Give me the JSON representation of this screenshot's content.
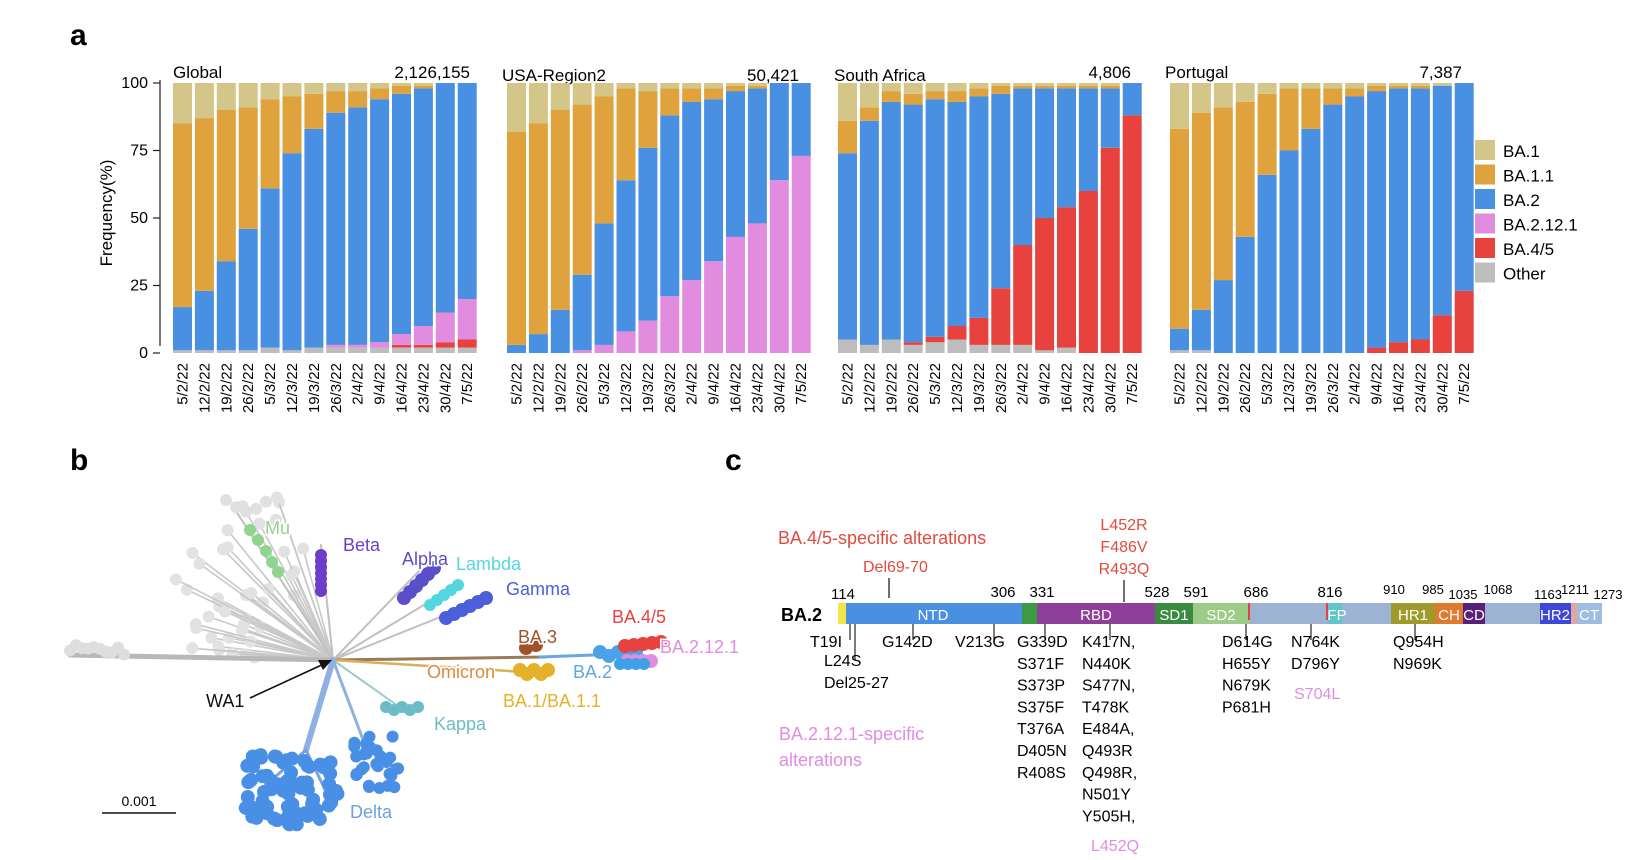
{
  "panel_labels": {
    "a": "a",
    "b": "b",
    "c": "c"
  },
  "colors": {
    "BA.1": "#d4c589",
    "BA.1.1": "#e0a23c",
    "BA.2": "#4a90e2",
    "BA.2.12.1": "#e28ce0",
    "BA.4/5": "#e8423f",
    "Other": "#bdbdbd"
  },
  "chart_data": [
    {
      "type": "bar",
      "stacked": true,
      "title": "Global",
      "count_label": "2,126,155",
      "ylabel": "Frequency(%)",
      "ylim": [
        0,
        100
      ],
      "yticks": [
        "0",
        "25",
        "50",
        "75",
        "100"
      ],
      "categories": [
        "5/2/22",
        "12/2/22",
        "19/2/22",
        "26/2/22",
        "5/3/22",
        "12/3/22",
        "19/3/22",
        "26/3/22",
        "2/4/22",
        "9/4/22",
        "16/4/22",
        "23/4/22",
        "30/4/22",
        "7/5/22"
      ],
      "series": [
        {
          "name": "Other",
          "values": [
            1,
            1,
            1,
            1,
            2,
            1,
            2,
            2,
            2,
            2,
            2,
            2,
            2,
            2
          ]
        },
        {
          "name": "BA.4/5",
          "values": [
            0,
            0,
            0,
            0,
            0,
            0,
            0,
            0,
            0,
            0,
            1,
            1,
            2,
            3
          ]
        },
        {
          "name": "BA.2.12.1",
          "values": [
            0,
            0,
            0,
            0,
            0,
            0,
            0,
            1,
            1,
            2,
            4,
            7,
            11,
            15
          ]
        },
        {
          "name": "BA.2",
          "values": [
            16,
            22,
            33,
            45,
            59,
            73,
            81,
            86,
            88,
            90,
            89,
            88,
            85,
            80
          ]
        },
        {
          "name": "BA.1.1",
          "values": [
            68,
            64,
            56,
            45,
            33,
            21,
            13,
            8,
            6,
            4,
            3,
            1,
            0,
            0
          ]
        },
        {
          "name": "BA.1",
          "values": [
            15,
            13,
            10,
            9,
            6,
            5,
            4,
            3,
            3,
            2,
            1,
            1,
            0,
            0
          ]
        }
      ],
      "legend": "right"
    },
    {
      "type": "bar",
      "stacked": true,
      "title": "USA-Region2",
      "count_label": "50,421",
      "ylim": [
        0,
        100
      ],
      "categories": [
        "5/2/22",
        "12/2/22",
        "19/2/22",
        "26/2/22",
        "5/3/22",
        "12/3/22",
        "19/3/22",
        "26/3/22",
        "2/4/22",
        "9/4/22",
        "16/4/22",
        "23/4/22",
        "30/4/22",
        "7/5/22"
      ],
      "series": [
        {
          "name": "Other",
          "values": [
            0,
            0,
            0,
            0,
            0,
            0,
            0,
            0,
            0,
            0,
            0,
            0,
            0,
            0
          ]
        },
        {
          "name": "BA.4/5",
          "values": [
            0,
            0,
            0,
            0,
            0,
            0,
            0,
            0,
            0,
            0,
            0,
            0,
            0,
            0
          ]
        },
        {
          "name": "BA.2.12.1",
          "values": [
            0,
            0,
            0,
            1,
            3,
            8,
            12,
            21,
            27,
            34,
            43,
            48,
            64,
            73
          ]
        },
        {
          "name": "BA.2",
          "values": [
            3,
            7,
            16,
            28,
            45,
            56,
            64,
            67,
            66,
            60,
            54,
            50,
            36,
            27
          ]
        },
        {
          "name": "BA.1.1",
          "values": [
            79,
            78,
            74,
            63,
            47,
            34,
            21,
            10,
            5,
            4,
            2,
            1,
            0,
            0
          ]
        },
        {
          "name": "BA.1",
          "values": [
            18,
            15,
            10,
            8,
            5,
            2,
            3,
            2,
            2,
            2,
            1,
            1,
            0,
            0
          ]
        }
      ]
    },
    {
      "type": "bar",
      "stacked": true,
      "title": "South Africa",
      "count_label": "4,806",
      "ylim": [
        0,
        100
      ],
      "categories": [
        "5/2/22",
        "12/2/22",
        "19/2/22",
        "26/2/22",
        "5/3/22",
        "12/3/22",
        "19/3/22",
        "26/3/22",
        "2/4/22",
        "9/4/22",
        "16/4/22",
        "23/4/22",
        "30/4/22",
        "7/5/22"
      ],
      "series": [
        {
          "name": "Other",
          "values": [
            5,
            3,
            5,
            3,
            4,
            5,
            3,
            3,
            3,
            1,
            2,
            0,
            0,
            0
          ]
        },
        {
          "name": "BA.4/5",
          "values": [
            0,
            0,
            0,
            1,
            2,
            5,
            10,
            21,
            37,
            49,
            52,
            60,
            76,
            88
          ]
        },
        {
          "name": "BA.2.12.1",
          "values": [
            0,
            0,
            0,
            0,
            0,
            0,
            0,
            0,
            0,
            0,
            0,
            0,
            0,
            0
          ]
        },
        {
          "name": "BA.2",
          "values": [
            69,
            83,
            88,
            88,
            88,
            83,
            82,
            72,
            58,
            48,
            44,
            38,
            22,
            12
          ]
        },
        {
          "name": "BA.1.1",
          "values": [
            12,
            5,
            4,
            4,
            3,
            4,
            3,
            3,
            1,
            1,
            1,
            1,
            1,
            0
          ]
        },
        {
          "name": "BA.1",
          "values": [
            14,
            9,
            3,
            4,
            3,
            3,
            2,
            1,
            1,
            1,
            1,
            1,
            1,
            0
          ]
        }
      ]
    },
    {
      "type": "bar",
      "stacked": true,
      "title": "Portugal",
      "count_label": "7,387",
      "ylim": [
        0,
        100
      ],
      "categories": [
        "5/2/22",
        "12/2/22",
        "19/2/22",
        "26/2/22",
        "5/3/22",
        "12/3/22",
        "19/3/22",
        "26/3/22",
        "2/4/22",
        "9/4/22",
        "16/4/22",
        "23/4/22",
        "30/4/22",
        "7/5/22"
      ],
      "series": [
        {
          "name": "Other",
          "values": [
            1,
            1,
            0,
            0,
            0,
            0,
            0,
            0,
            0,
            0,
            0,
            0,
            0,
            0
          ]
        },
        {
          "name": "BA.4/5",
          "values": [
            0,
            0,
            0,
            0,
            0,
            0,
            0,
            0,
            0,
            2,
            4,
            5,
            14,
            23
          ]
        },
        {
          "name": "BA.2.12.1",
          "values": [
            0,
            0,
            0,
            0,
            0,
            0,
            0,
            0,
            0,
            0,
            0,
            0,
            0,
            0
          ]
        },
        {
          "name": "BA.2",
          "values": [
            8,
            15,
            27,
            43,
            66,
            75,
            83,
            92,
            95,
            95,
            94,
            93,
            85,
            77
          ]
        },
        {
          "name": "BA.1.1",
          "values": [
            74,
            73,
            64,
            50,
            30,
            23,
            15,
            6,
            3,
            2,
            1,
            1,
            0,
            0
          ]
        },
        {
          "name": "BA.1",
          "values": [
            17,
            11,
            9,
            7,
            4,
            2,
            2,
            2,
            2,
            1,
            1,
            1,
            1,
            0
          ]
        }
      ]
    }
  ],
  "legend_items": [
    "BA.1",
    "BA.1.1",
    "BA.2",
    "BA.2.12.1",
    "BA.4/5",
    "Other"
  ],
  "tree": {
    "labels": [
      {
        "text": "Mu",
        "color": "#8fd48f"
      },
      {
        "text": "Beta",
        "color": "#6a3ec8"
      },
      {
        "text": "Alpha",
        "color": "#5a4ecb"
      },
      {
        "text": "Lambda",
        "color": "#53d6df"
      },
      {
        "text": "Gamma",
        "color": "#4a5fd9"
      },
      {
        "text": "BA.4/5",
        "color": "#e8423f"
      },
      {
        "text": "BA.2.12.1",
        "color": "#e28ce0"
      },
      {
        "text": "BA.3",
        "color": "#a0532b"
      },
      {
        "text": "Omicron",
        "color": "#e0883c"
      },
      {
        "text": "BA.2",
        "color": "#59a9e8"
      },
      {
        "text": "BA.1/BA.1.1",
        "color": "#e6b02a"
      },
      {
        "text": "Kappa",
        "color": "#6bbcc4"
      },
      {
        "text": "Delta",
        "color": "#6c9fe3"
      },
      {
        "text": "WA1",
        "color": "#111111"
      }
    ],
    "scale_label": "0.001"
  },
  "genome": {
    "name": "BA.2",
    "ba45_title": "BA.4/5-specific alterations",
    "ba2121_title": "BA.2.12.1-specific alterations",
    "ba45_del": "Del69-70",
    "ba45_rbd": [
      "L452R",
      "F486V",
      "R493Q"
    ],
    "positions": [
      "114",
      "306",
      "331",
      "528",
      "591",
      "686",
      "816",
      "910",
      "985",
      "1035",
      "1068",
      "1163",
      "1211",
      "1273"
    ],
    "domains": [
      "NTD",
      "RBD",
      "SD1",
      "SD2",
      "FP",
      "HR1",
      "CH",
      "CD",
      "HR2",
      "CT"
    ],
    "mut_groups": [
      {
        "lines": [
          "T19I"
        ]
      },
      {
        "lines": [
          "L24S",
          "Del25-27"
        ]
      },
      {
        "lines": [
          "G142D"
        ]
      },
      {
        "lines": [
          "V213G"
        ]
      },
      {
        "lines": [
          "G339D",
          "S371F",
          "S373P",
          "S375F",
          "T376A",
          "D405N",
          "R408S"
        ]
      },
      {
        "lines": [
          "K417N,",
          "N440K",
          "S477N,",
          "T478K",
          "E484A,",
          "Q493R",
          "Q498R,",
          "N501Y",
          "Y505H,"
        ]
      },
      {
        "lines": [
          "D614G",
          "H655Y",
          "N679K",
          "P681H"
        ]
      },
      {
        "lines": [
          "N764K",
          "D796Y"
        ]
      },
      {
        "lines": [
          "Q954H",
          "N969K"
        ]
      }
    ],
    "ba2121_muts": [
      "L452Q",
      "S704L"
    ]
  }
}
